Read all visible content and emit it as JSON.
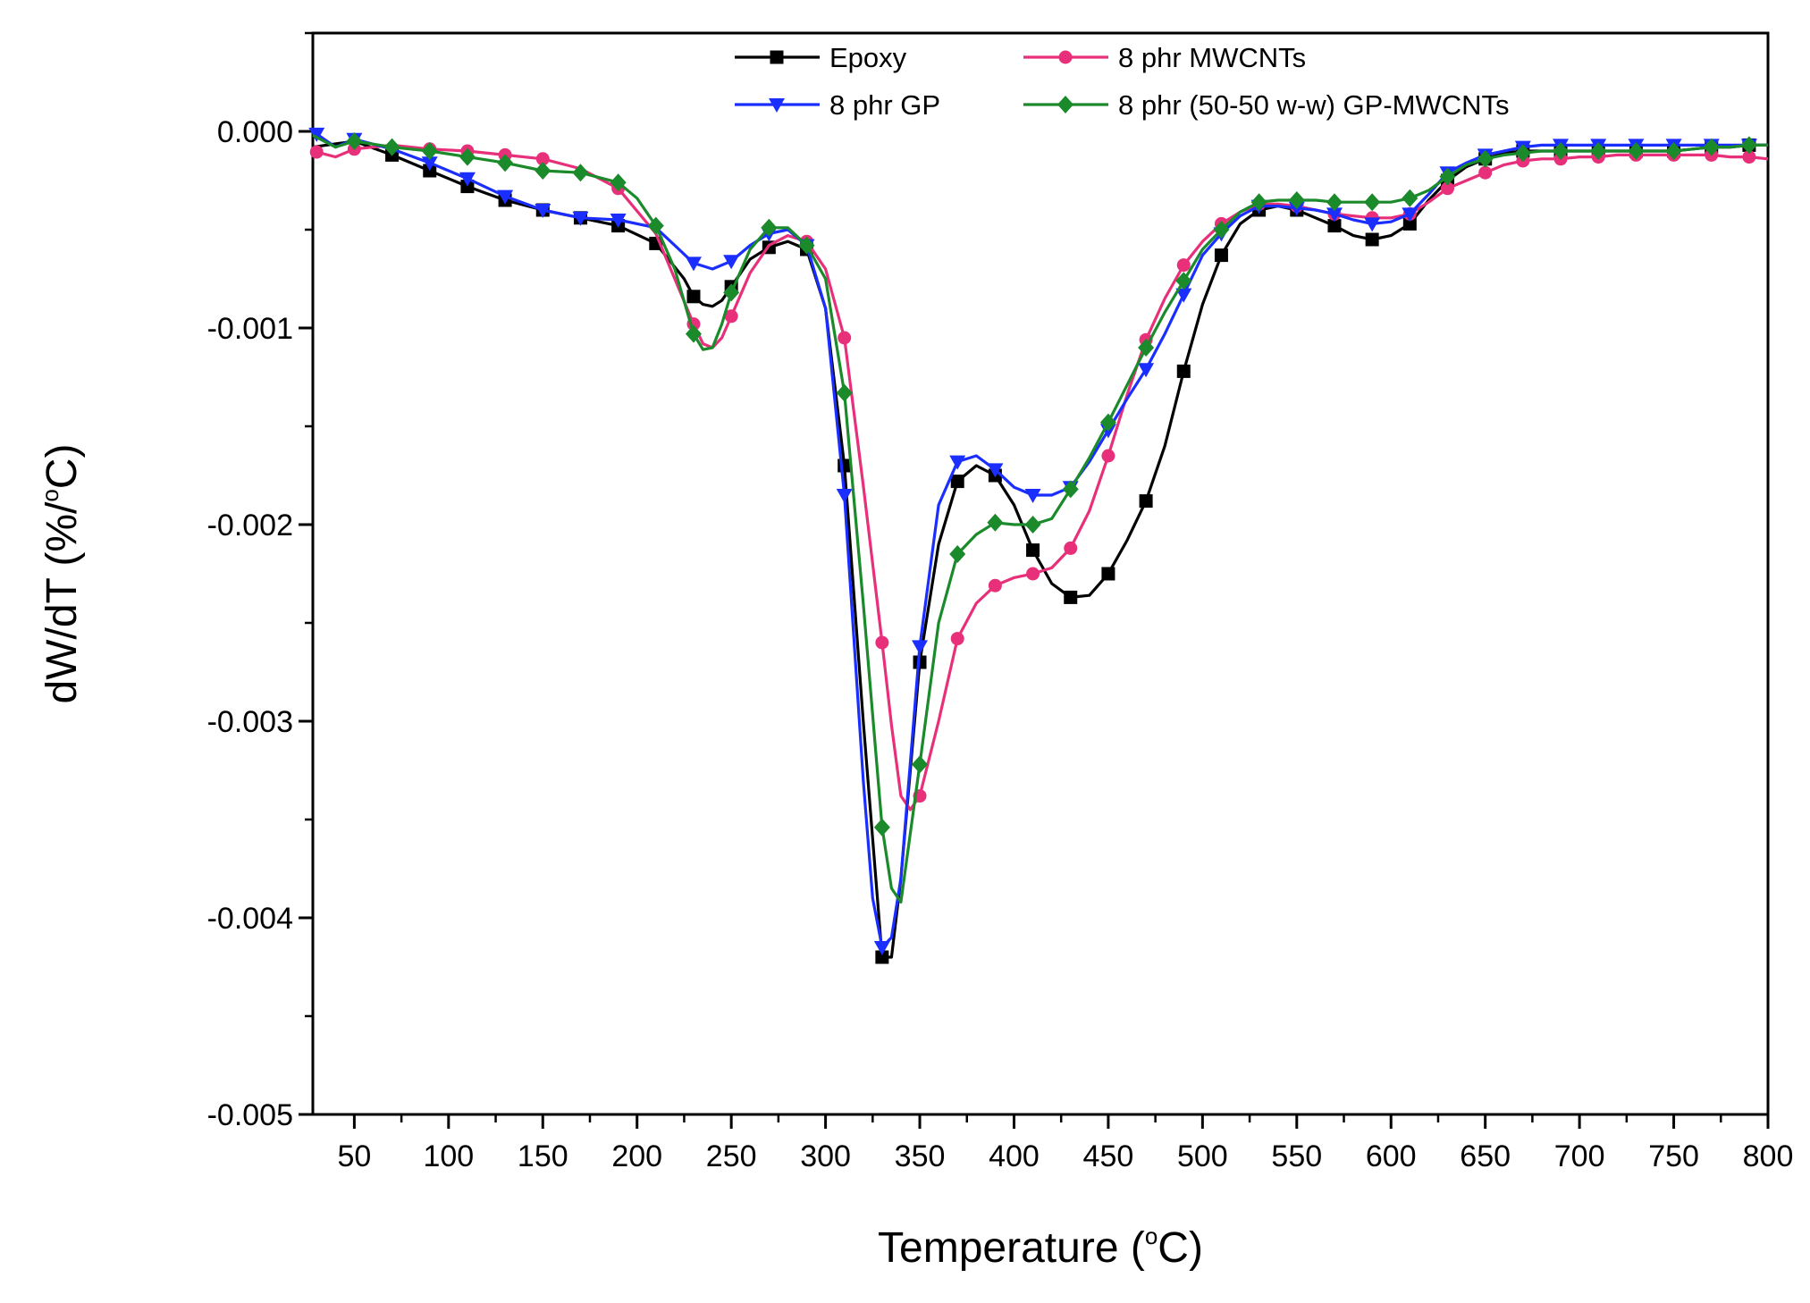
{
  "chart_data": {
    "type": "line",
    "title": "",
    "xlabel": {
      "main": "Temperature (",
      "sup": "o",
      "tail": "C)"
    },
    "ylabel": {
      "main": "dW/dT (%/",
      "sup": "o",
      "tail": "C)"
    },
    "xlim": [
      28,
      800
    ],
    "ylim": [
      -0.005,
      0.0005
    ],
    "xticks": [
      50,
      100,
      150,
      200,
      250,
      300,
      350,
      400,
      450,
      500,
      550,
      600,
      650,
      700,
      750,
      800
    ],
    "xtick_labels": [
      "50",
      "100",
      "150",
      "200",
      "250",
      "300",
      "350",
      "400",
      "450",
      "500",
      "550",
      "600",
      "650",
      "700",
      "750",
      "800"
    ],
    "yticks": [
      0,
      -0.001,
      -0.002,
      -0.003,
      -0.004,
      -0.005
    ],
    "ytick_labels": [
      "0.000",
      "-0.001",
      "-0.002",
      "-0.003",
      "-0.004",
      "-0.005"
    ],
    "legend_position": "top",
    "series": [
      {
        "name": "Epoxy",
        "color": "#000000",
        "marker": "square",
        "x": [
          28,
          50,
          70,
          90,
          110,
          130,
          150,
          170,
          190,
          210,
          225,
          230,
          235,
          240,
          245,
          250,
          260,
          270,
          280,
          290,
          300,
          310,
          320,
          330,
          335,
          340,
          350,
          360,
          370,
          380,
          390,
          400,
          410,
          420,
          430,
          440,
          450,
          460,
          470,
          480,
          490,
          500,
          510,
          520,
          530,
          540,
          550,
          560,
          570,
          580,
          590,
          600,
          610,
          620,
          630,
          640,
          650,
          660,
          670,
          680,
          690,
          700,
          710,
          720,
          730,
          740,
          750,
          760,
          770,
          780,
          790,
          800
        ],
        "y": [
          -8e-05,
          -5e-05,
          -0.00012,
          -0.0002,
          -0.00028,
          -0.00035,
          -0.0004,
          -0.00044,
          -0.00048,
          -0.00057,
          -0.00075,
          -0.00084,
          -0.00088,
          -0.00089,
          -0.00086,
          -0.00079,
          -0.00065,
          -0.00059,
          -0.00056,
          -0.0006,
          -0.0009,
          -0.0017,
          -0.003,
          -0.0042,
          -0.0042,
          -0.0038,
          -0.0027,
          -0.0021,
          -0.00178,
          -0.0017,
          -0.00175,
          -0.0019,
          -0.00213,
          -0.0023,
          -0.00237,
          -0.00236,
          -0.00225,
          -0.00208,
          -0.00188,
          -0.0016,
          -0.00122,
          -0.00088,
          -0.00063,
          -0.00047,
          -0.0004,
          -0.00038,
          -0.0004,
          -0.00044,
          -0.00048,
          -0.00053,
          -0.00055,
          -0.00053,
          -0.00047,
          -0.00035,
          -0.00025,
          -0.00018,
          -0.00014,
          -0.00011,
          -0.0001,
          -0.0001,
          -0.0001,
          -0.0001,
          -0.0001,
          -0.0001,
          -0.0001,
          -0.0001,
          -0.0001,
          -9e-05,
          -8e-05,
          -8e-05,
          -7e-05,
          -7e-05
        ],
        "marker_x": [
          70,
          90,
          110,
          130,
          150,
          170,
          190,
          210,
          230,
          250,
          270,
          290,
          310,
          330,
          350,
          370,
          390,
          410,
          430,
          450,
          470,
          490,
          510,
          530,
          550,
          570,
          590,
          610,
          630,
          650,
          670,
          690,
          710,
          730,
          750,
          770,
          790
        ]
      },
      {
        "name": "8 phr MWCNTs",
        "color": "#E8307A",
        "marker": "circle",
        "x": [
          28,
          40,
          50,
          70,
          90,
          110,
          130,
          150,
          170,
          190,
          210,
          220,
          230,
          235,
          240,
          245,
          250,
          260,
          270,
          280,
          290,
          300,
          310,
          320,
          330,
          335,
          340,
          345,
          350,
          360,
          370,
          380,
          390,
          400,
          410,
          420,
          430,
          440,
          450,
          460,
          470,
          480,
          490,
          500,
          510,
          520,
          530,
          540,
          550,
          560,
          570,
          580,
          590,
          600,
          610,
          620,
          630,
          640,
          650,
          660,
          670,
          680,
          690,
          700,
          710,
          720,
          730,
          740,
          750,
          760,
          770,
          780,
          790,
          800
        ],
        "y": [
          -0.0001,
          -0.00013,
          -9e-05,
          -7e-05,
          -9e-05,
          -0.0001,
          -0.00012,
          -0.00014,
          -0.00019,
          -0.00029,
          -0.00052,
          -0.00075,
          -0.00098,
          -0.00108,
          -0.0011,
          -0.00105,
          -0.00094,
          -0.00072,
          -0.00058,
          -0.00053,
          -0.00056,
          -0.0007,
          -0.00105,
          -0.0018,
          -0.0026,
          -0.00302,
          -0.00338,
          -0.00345,
          -0.00338,
          -0.003,
          -0.00258,
          -0.0024,
          -0.00231,
          -0.00227,
          -0.00225,
          -0.00222,
          -0.00212,
          -0.00193,
          -0.00165,
          -0.00134,
          -0.00106,
          -0.00085,
          -0.00068,
          -0.00056,
          -0.00047,
          -0.00041,
          -0.00037,
          -0.00037,
          -0.00038,
          -0.0004,
          -0.00042,
          -0.00043,
          -0.00044,
          -0.00044,
          -0.00042,
          -0.00036,
          -0.00029,
          -0.00025,
          -0.00021,
          -0.00017,
          -0.00015,
          -0.00014,
          -0.00014,
          -0.00013,
          -0.00013,
          -0.00012,
          -0.00012,
          -0.00012,
          -0.00012,
          -0.00012,
          -0.00012,
          -0.00013,
          -0.00013,
          -0.00014
        ],
        "marker_x": [
          30,
          50,
          90,
          110,
          130,
          150,
          190,
          230,
          250,
          290,
          310,
          330,
          350,
          370,
          390,
          410,
          430,
          450,
          470,
          490,
          510,
          530,
          550,
          570,
          590,
          610,
          630,
          650,
          670,
          690,
          710,
          730,
          750,
          770,
          790
        ]
      },
      {
        "name": "8 phr GP",
        "color": "#1A2EFF",
        "marker": "triangle-down",
        "x": [
          28,
          40,
          50,
          70,
          90,
          110,
          130,
          150,
          170,
          190,
          210,
          220,
          230,
          240,
          250,
          260,
          270,
          280,
          290,
          300,
          310,
          320,
          325,
          330,
          335,
          340,
          350,
          360,
          370,
          380,
          390,
          400,
          410,
          420,
          430,
          440,
          450,
          460,
          470,
          480,
          490,
          500,
          510,
          520,
          530,
          540,
          550,
          560,
          570,
          580,
          590,
          600,
          610,
          620,
          630,
          640,
          650,
          660,
          670,
          680,
          690,
          700,
          710,
          720,
          730,
          740,
          750,
          760,
          770,
          780,
          790,
          800
        ],
        "y": [
          0,
          -8e-05,
          -4e-05,
          -9e-05,
          -0.00016,
          -0.00024,
          -0.00033,
          -0.0004,
          -0.00044,
          -0.00045,
          -0.00049,
          -0.00058,
          -0.00067,
          -0.0007,
          -0.00066,
          -0.00058,
          -0.00052,
          -0.0005,
          -0.00058,
          -0.0009,
          -0.00185,
          -0.0033,
          -0.0039,
          -0.00415,
          -0.0041,
          -0.0038,
          -0.00262,
          -0.0019,
          -0.00168,
          -0.00165,
          -0.00172,
          -0.00181,
          -0.00185,
          -0.00185,
          -0.00181,
          -0.00168,
          -0.00152,
          -0.00136,
          -0.00121,
          -0.00103,
          -0.00083,
          -0.00063,
          -0.00052,
          -0.00043,
          -0.00038,
          -0.00038,
          -0.00039,
          -0.0004,
          -0.00042,
          -0.00045,
          -0.00047,
          -0.00046,
          -0.00042,
          -0.00032,
          -0.00021,
          -0.00016,
          -0.00012,
          -0.0001,
          -8e-05,
          -7e-05,
          -7e-05,
          -7e-05,
          -7e-05,
          -7e-05,
          -7e-05,
          -7e-05,
          -7e-05,
          -7e-05,
          -7e-05,
          -7e-05,
          -7e-05,
          -7e-05
        ],
        "marker_x": [
          30,
          50,
          90,
          110,
          130,
          150,
          170,
          190,
          230,
          250,
          270,
          290,
          310,
          330,
          350,
          370,
          390,
          410,
          430,
          450,
          470,
          490,
          510,
          530,
          550,
          570,
          590,
          610,
          630,
          650,
          670,
          690,
          710,
          730,
          750,
          770,
          790
        ]
      },
      {
        "name": "8 phr (50-50 w-w) GP-MWCNTs",
        "color": "#1A8A2A",
        "marker": "diamond",
        "x": [
          28,
          40,
          50,
          70,
          90,
          110,
          130,
          150,
          170,
          190,
          200,
          210,
          220,
          230,
          235,
          240,
          245,
          250,
          260,
          270,
          280,
          290,
          300,
          310,
          320,
          330,
          335,
          340,
          350,
          360,
          370,
          380,
          390,
          400,
          410,
          420,
          430,
          440,
          450,
          460,
          470,
          480,
          490,
          500,
          510,
          520,
          530,
          540,
          550,
          560,
          570,
          580,
          590,
          600,
          610,
          620,
          630,
          640,
          650,
          660,
          670,
          680,
          690,
          700,
          710,
          720,
          730,
          740,
          750,
          760,
          770,
          780,
          790,
          800
        ],
        "y": [
          -2e-05,
          -8e-05,
          -5e-05,
          -8e-05,
          -0.0001,
          -0.00013,
          -0.00016,
          -0.0002,
          -0.00021,
          -0.00026,
          -0.00034,
          -0.00048,
          -0.0007,
          -0.00103,
          -0.00111,
          -0.0011,
          -0.00098,
          -0.00082,
          -0.0006,
          -0.00049,
          -0.00049,
          -0.00058,
          -0.00075,
          -0.00133,
          -0.0024,
          -0.00354,
          -0.00385,
          -0.00392,
          -0.00322,
          -0.0025,
          -0.00215,
          -0.00205,
          -0.00199,
          -0.002,
          -0.002,
          -0.00197,
          -0.00182,
          -0.00166,
          -0.00148,
          -0.00129,
          -0.0011,
          -0.00092,
          -0.00076,
          -0.0006,
          -0.0005,
          -0.00041,
          -0.00036,
          -0.00035,
          -0.00035,
          -0.00035,
          -0.00036,
          -0.00036,
          -0.00036,
          -0.00036,
          -0.00034,
          -0.0003,
          -0.00023,
          -0.00017,
          -0.00014,
          -0.00012,
          -0.00011,
          -0.0001,
          -0.0001,
          -0.0001,
          -0.0001,
          -0.0001,
          -0.0001,
          -0.0001,
          -0.0001,
          -9e-05,
          -8e-05,
          -8e-05,
          -7e-05,
          -7e-05
        ],
        "marker_x": [
          50,
          70,
          90,
          110,
          130,
          150,
          170,
          190,
          210,
          230,
          250,
          270,
          290,
          310,
          330,
          350,
          370,
          390,
          410,
          430,
          450,
          470,
          490,
          510,
          530,
          550,
          570,
          590,
          610,
          630,
          650,
          670,
          690,
          710,
          730,
          750,
          770,
          790
        ]
      }
    ]
  }
}
